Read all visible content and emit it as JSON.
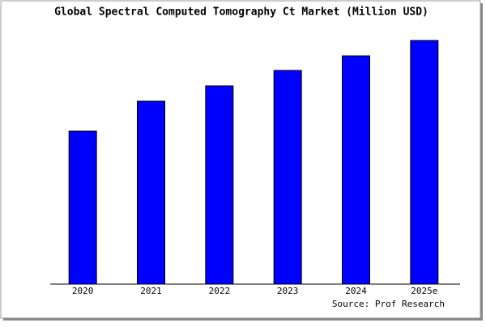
{
  "chart_data": {
    "type": "bar",
    "title": "Global Spectral Computed Tomography Ct Market (Million USD)",
    "categories": [
      "2020",
      "2021",
      "2022",
      "2023",
      "2024",
      "2025e"
    ],
    "values": [
      189,
      226,
      245,
      264,
      282,
      301
    ],
    "color": "#0000ff",
    "ylim": [
      0,
      303
    ],
    "source": "Source: Prof Research"
  }
}
